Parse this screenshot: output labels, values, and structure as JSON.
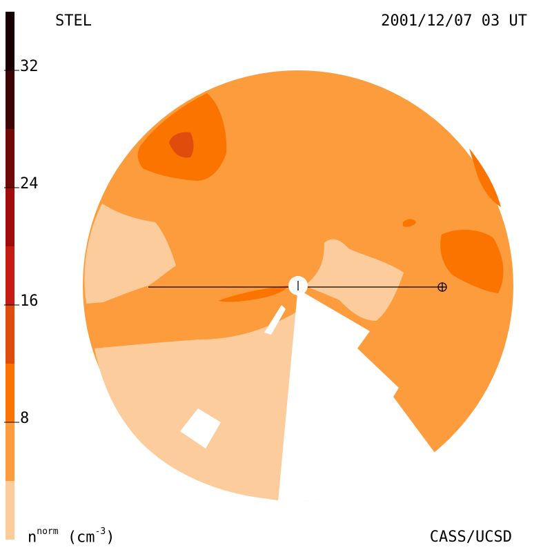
{
  "header": {
    "observatory": "STEL",
    "timestamp": "2001/12/07 03 UT"
  },
  "footer": {
    "credit": "CASS/UCSD",
    "colorbar_label_main": "n",
    "colorbar_label_sup": "norm",
    "colorbar_label_unit": "(cm",
    "colorbar_label_unit_sup": "-3",
    "colorbar_label_close": ")"
  },
  "colors": {
    "background": "#ffffff",
    "level_1": "#fccc9c",
    "level_2": "#fc9c3c",
    "level_3": "#fc7400",
    "level_4": "#e04c0c",
    "level_5": "#c41c14",
    "level_6": "#a00c0c",
    "level_7": "#700808",
    "level_8": "#3c0404",
    "level_9": "#180000",
    "marker": "#000000"
  },
  "chart_data": {
    "type": "heatmap",
    "title": "",
    "quantity": "normalized density",
    "unit": "cm^-3",
    "colorbar": {
      "range": [
        0,
        36
      ],
      "tick_labels": [
        "8",
        "16",
        "24",
        "32"
      ],
      "tick_values": [
        8,
        16,
        24,
        32
      ],
      "levels": [
        {
          "min": 0,
          "max": 4,
          "color": "#fccc9c"
        },
        {
          "min": 4,
          "max": 8,
          "color": "#fc9c3c"
        },
        {
          "min": 8,
          "max": 12,
          "color": "#fc7400"
        },
        {
          "min": 12,
          "max": 16,
          "color": "#e04c0c"
        },
        {
          "min": 16,
          "max": 20,
          "color": "#c41c14"
        },
        {
          "min": 20,
          "max": 24,
          "color": "#a00c0c"
        },
        {
          "min": 24,
          "max": 28,
          "color": "#700808"
        },
        {
          "min": 28,
          "max": 32,
          "color": "#3c0404"
        },
        {
          "min": 32,
          "max": 36,
          "color": "#180000"
        }
      ]
    },
    "map_regions": [
      {
        "name": "background-level",
        "value_range": [
          4,
          8
        ]
      },
      {
        "name": "left-low-density-lobe",
        "value_range": [
          0,
          4
        ]
      },
      {
        "name": "lower-left-low-density-region",
        "value_range": [
          0,
          4
        ]
      },
      {
        "name": "central-low-density-region",
        "value_range": [
          0,
          4
        ]
      },
      {
        "name": "upper-left-enhancement",
        "value_range": [
          8,
          12
        ]
      },
      {
        "name": "upper-left-peak",
        "value_range": [
          12,
          16
        ]
      },
      {
        "name": "right-enhancement",
        "value_range": [
          8,
          12
        ]
      },
      {
        "name": "sun-adjacent-streak",
        "value_range": [
          8,
          12
        ]
      }
    ],
    "markers": [
      "Sun (center)",
      "Earth (⊕)"
    ]
  }
}
